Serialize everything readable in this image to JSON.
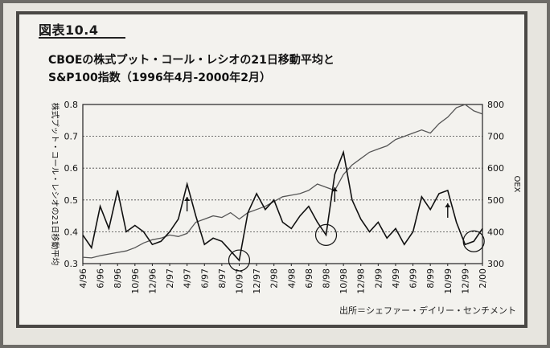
{
  "figure": {
    "label": "図表10.4",
    "title_line1": "CBOEの株式プット・コール・レシオの21日移動平均と",
    "title_line2": "S&P100指数（1996年4月-2000年2月）",
    "source": "出所＝シェファー・デイリー・センチメント"
  },
  "colors": {
    "background": "#f3f2ee",
    "frame": "#4a4845",
    "ratio_line": "#111111",
    "oex_line": "#555555",
    "grid": "#444444"
  },
  "chart_data": {
    "type": "line",
    "x": [
      "4/96",
      "5/96",
      "6/96",
      "7/96",
      "8/96",
      "9/96",
      "10/96",
      "11/96",
      "12/96",
      "1/97",
      "2/97",
      "3/97",
      "4/97",
      "5/97",
      "6/97",
      "7/97",
      "8/97",
      "9/97",
      "10/97",
      "11/97",
      "12/97",
      "1/98",
      "2/98",
      "3/98",
      "4/98",
      "5/98",
      "6/98",
      "7/98",
      "8/98",
      "9/98",
      "10/98",
      "11/98",
      "12/98",
      "1/99",
      "2/99",
      "3/99",
      "4/99",
      "5/99",
      "6/99",
      "7/99",
      "8/99",
      "9/99",
      "10/99",
      "11/99",
      "12/99",
      "1/00",
      "2/00"
    ],
    "x_tick_labels": [
      "4/96",
      "6/96",
      "8/96",
      "10/96",
      "12/96",
      "2/97",
      "4/97",
      "6/97",
      "8/97",
      "10/97",
      "12/97",
      "2/98",
      "4/98",
      "6/98",
      "8/98",
      "10/98",
      "12/98",
      "2/99",
      "4/99",
      "6/99",
      "8/99",
      "10/99",
      "12/99",
      "2/00"
    ],
    "series": [
      {
        "axis": "left",
        "values": [
          0.39,
          0.35,
          0.48,
          0.41,
          0.53,
          0.4,
          0.42,
          0.4,
          0.36,
          0.37,
          0.4,
          0.44,
          0.55,
          0.45,
          0.36,
          0.38,
          0.37,
          0.34,
          0.31,
          0.46,
          0.52,
          0.47,
          0.5,
          0.43,
          0.41,
          0.45,
          0.48,
          0.43,
          0.39,
          0.58,
          0.65,
          0.5,
          0.44,
          0.4,
          0.43,
          0.38,
          0.41,
          0.36,
          0.4,
          0.51,
          0.47,
          0.52,
          0.53,
          0.43,
          0.36,
          0.37,
          0.41
        ]
      },
      {
        "axis": "right",
        "values": [
          320,
          318,
          325,
          330,
          335,
          340,
          350,
          365,
          375,
          380,
          390,
          385,
          395,
          430,
          440,
          450,
          445,
          460,
          440,
          460,
          470,
          480,
          495,
          510,
          515,
          520,
          530,
          550,
          540,
          530,
          580,
          610,
          630,
          650,
          660,
          670,
          690,
          700,
          710,
          720,
          710,
          740,
          760,
          790,
          800,
          780,
          770
        ]
      }
    ],
    "left_axis": {
      "label": "株式プット・コール・レシオの21日移動平均",
      "ylim": [
        0.3,
        0.8
      ],
      "ticks": [
        "0.3",
        "0.4",
        "0.5",
        "0.6",
        "0.7",
        "0.8"
      ]
    },
    "right_axis": {
      "label": "OEX",
      "ylim": [
        300,
        800
      ],
      "ticks": [
        "300",
        "400",
        "500",
        "600",
        "700",
        "800"
      ]
    },
    "grid": "horizontal dotted",
    "annotations": [
      {
        "kind": "arrow",
        "x": "4/97"
      },
      {
        "kind": "circle",
        "x": "10/97"
      },
      {
        "kind": "circle",
        "x": "8/98"
      },
      {
        "kind": "arrow",
        "x": "9/98"
      },
      {
        "kind": "arrow",
        "x": "10/99"
      },
      {
        "kind": "circle",
        "x": "1/00"
      }
    ]
  }
}
